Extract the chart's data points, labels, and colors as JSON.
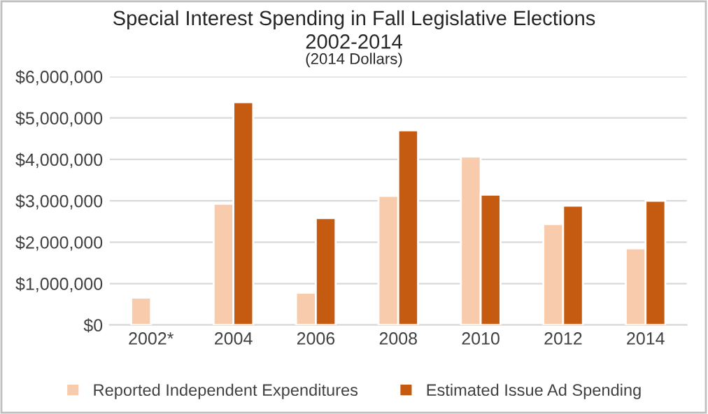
{
  "chart_data": {
    "type": "bar",
    "title": "Special Interest Spending in Fall Legislative Elections\n2002-2014",
    "subtitle": "(2014 Dollars)",
    "categories": [
      "2002*",
      "2004",
      "2006",
      "2008",
      "2010",
      "2012",
      "2014"
    ],
    "series": [
      {
        "name": "Reported Independent Expenditures",
        "color": "#f8cbad",
        "values": [
          660000,
          2930000,
          780000,
          3120000,
          4070000,
          2440000,
          1850000
        ]
      },
      {
        "name": "Estimated Issue Ad Spending",
        "color": "#c55a11",
        "values": [
          null,
          5380000,
          2580000,
          4700000,
          3150000,
          2880000,
          3000000
        ]
      }
    ],
    "ylim": [
      0,
      6000000
    ],
    "yticks": [
      {
        "value": 0,
        "label": "$0"
      },
      {
        "value": 1000000,
        "label": "$1,000,000"
      },
      {
        "value": 2000000,
        "label": "$2,000,000"
      },
      {
        "value": 3000000,
        "label": "$3,000,000"
      },
      {
        "value": 4000000,
        "label": "$4,000,000"
      },
      {
        "value": 5000000,
        "label": "$5,000,000"
      },
      {
        "value": 6000000,
        "label": "$6,000,000"
      }
    ],
    "grid": "y",
    "legend": "bottom"
  }
}
